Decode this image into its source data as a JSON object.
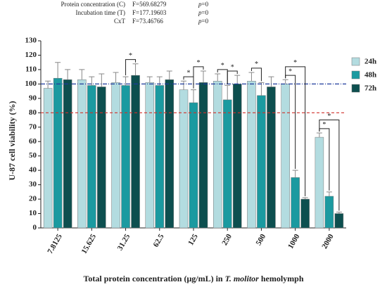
{
  "chart_data": {
    "type": "bar",
    "stats": [
      {
        "label": "Protein concentration (C)",
        "f": "F=569.68279",
        "p_symbol": "p",
        "p_value": "=0"
      },
      {
        "label": "Incubation time (T)",
        "f": "F=177.19603",
        "p_symbol": "p",
        "p_value": "=0"
      },
      {
        "label": "CxT",
        "f": "F=73.46766",
        "p_symbol": "p",
        "p_value": "=0"
      }
    ],
    "y_label": "U-87 cell viability (%)",
    "x_label": [
      "Total protein concentration (μg/mL) in ",
      "T. molitor",
      " hemolymph"
    ],
    "categories": [
      "7.8125",
      "15.625",
      "31.25",
      "62.5",
      "125",
      "250",
      "500",
      "1000",
      "2000"
    ],
    "series": [
      {
        "name": "24h",
        "color": "#b3dce0",
        "values": [
          97,
          103,
          101,
          101,
          96,
          102,
          102,
          100,
          63
        ],
        "errors": [
          5,
          7,
          7,
          4,
          6,
          5,
          6,
          3,
          3
        ]
      },
      {
        "name": "48h",
        "color": "#1b9aa0",
        "values": [
          104,
          99,
          99,
          99,
          87,
          89,
          92,
          35,
          22
        ],
        "errors": [
          11,
          6,
          6,
          6,
          9,
          10,
          9,
          5,
          3
        ]
      },
      {
        "name": "72h",
        "color": "#0d4f4f",
        "values": [
          103,
          98,
          106,
          103,
          101,
          100,
          98,
          20,
          10
        ],
        "errors": [
          7,
          9,
          8,
          6,
          8,
          6,
          7,
          1,
          1
        ]
      }
    ],
    "reference_lines": [
      {
        "value": 100,
        "color": "#1f3a9c",
        "style": "dashdot"
      },
      {
        "value": 80,
        "color": "#d0302a",
        "style": "dashed"
      }
    ],
    "significance": [
      {
        "category": "31.25",
        "from": "48h",
        "to": "72h",
        "label": "*"
      },
      {
        "category": "125",
        "from": "24h",
        "to": "48h",
        "label": "*"
      },
      {
        "category": "125",
        "from": "48h",
        "to": "72h",
        "label": "*"
      },
      {
        "category": "250",
        "from": "24h",
        "to": "48h",
        "label": "*"
      },
      {
        "category": "250",
        "from": "48h",
        "to": "72h",
        "label": "*"
      },
      {
        "category": "500",
        "from": "24h",
        "to": "48h",
        "label": "*"
      },
      {
        "category": "1000",
        "from": "24h",
        "to": "48h",
        "label": "*"
      },
      {
        "category": "1000",
        "from": "24h",
        "to": "72h",
        "label": "*"
      },
      {
        "category": "2000",
        "from": "24h",
        "to": "48h",
        "label": "*"
      },
      {
        "category": "2000",
        "from": "24h",
        "to": "72h",
        "label": "*"
      }
    ],
    "ylim": [
      0,
      130
    ],
    "yticks": [
      0,
      10,
      20,
      30,
      40,
      50,
      60,
      70,
      80,
      90,
      100,
      110,
      120,
      130
    ],
    "legend": "upper right",
    "grid": false
  }
}
